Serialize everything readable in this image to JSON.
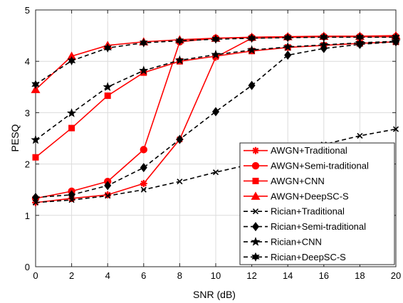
{
  "chart_data": {
    "type": "line",
    "xlabel": "SNR (dB)",
    "ylabel": "PESQ",
    "xlim": [
      0,
      20
    ],
    "ylim": [
      0,
      5
    ],
    "xticks": [
      0,
      2,
      4,
      6,
      8,
      10,
      12,
      14,
      16,
      18,
      20
    ],
    "yticks": [
      0,
      1,
      2,
      3,
      4,
      5
    ],
    "grid": true,
    "legend_position": "lower-right",
    "x": [
      0,
      2,
      4,
      6,
      8,
      10,
      12,
      14,
      16,
      18,
      20
    ],
    "series": [
      {
        "name": "AWGN+Traditional",
        "color": "#ff0000",
        "line_style": "solid",
        "marker": "asterisk",
        "values": [
          1.25,
          1.33,
          1.4,
          1.62,
          2.48,
          4.08,
          4.45,
          4.47,
          4.48,
          4.48,
          4.48
        ]
      },
      {
        "name": "AWGN+Semi-traditional",
        "color": "#ff0000",
        "line_style": "solid",
        "marker": "circle",
        "values": [
          1.33,
          1.47,
          1.66,
          2.28,
          4.38,
          4.45,
          4.46,
          4.47,
          4.48,
          4.48,
          4.48
        ]
      },
      {
        "name": "AWGN+CNN",
        "color": "#ff0000",
        "line_style": "solid",
        "marker": "square",
        "values": [
          2.13,
          2.7,
          3.33,
          3.78,
          4.0,
          4.1,
          4.2,
          4.27,
          4.31,
          4.35,
          4.38
        ]
      },
      {
        "name": "AWGN+DeepSC-S",
        "color": "#ff0000",
        "line_style": "solid",
        "marker": "triangle",
        "values": [
          3.45,
          4.1,
          4.31,
          4.38,
          4.42,
          4.45,
          4.47,
          4.48,
          4.49,
          4.49,
          4.5
        ]
      },
      {
        "name": "Rician+Traditional",
        "color": "#000000",
        "line_style": "dashed",
        "marker": "x",
        "values": [
          1.25,
          1.3,
          1.38,
          1.5,
          1.66,
          1.84,
          2.0,
          2.18,
          2.38,
          2.55,
          2.68
        ]
      },
      {
        "name": "Rician+Semi-traditional",
        "color": "#000000",
        "line_style": "dashed",
        "marker": "diamond",
        "values": [
          1.35,
          1.4,
          1.58,
          1.93,
          2.48,
          3.02,
          3.53,
          4.12,
          4.25,
          4.33,
          4.38
        ]
      },
      {
        "name": "Rician+CNN",
        "color": "#000000",
        "line_style": "dashed",
        "marker": "pentagram",
        "values": [
          2.47,
          2.99,
          3.5,
          3.82,
          4.02,
          4.13,
          4.22,
          4.28,
          4.32,
          4.36,
          4.39
        ]
      },
      {
        "name": "Rician+DeepSC-S",
        "color": "#000000",
        "line_style": "dashed",
        "marker": "hexagram",
        "values": [
          3.55,
          4.01,
          4.26,
          4.36,
          4.4,
          4.43,
          4.45,
          4.46,
          4.47,
          4.47,
          4.47
        ]
      }
    ]
  }
}
